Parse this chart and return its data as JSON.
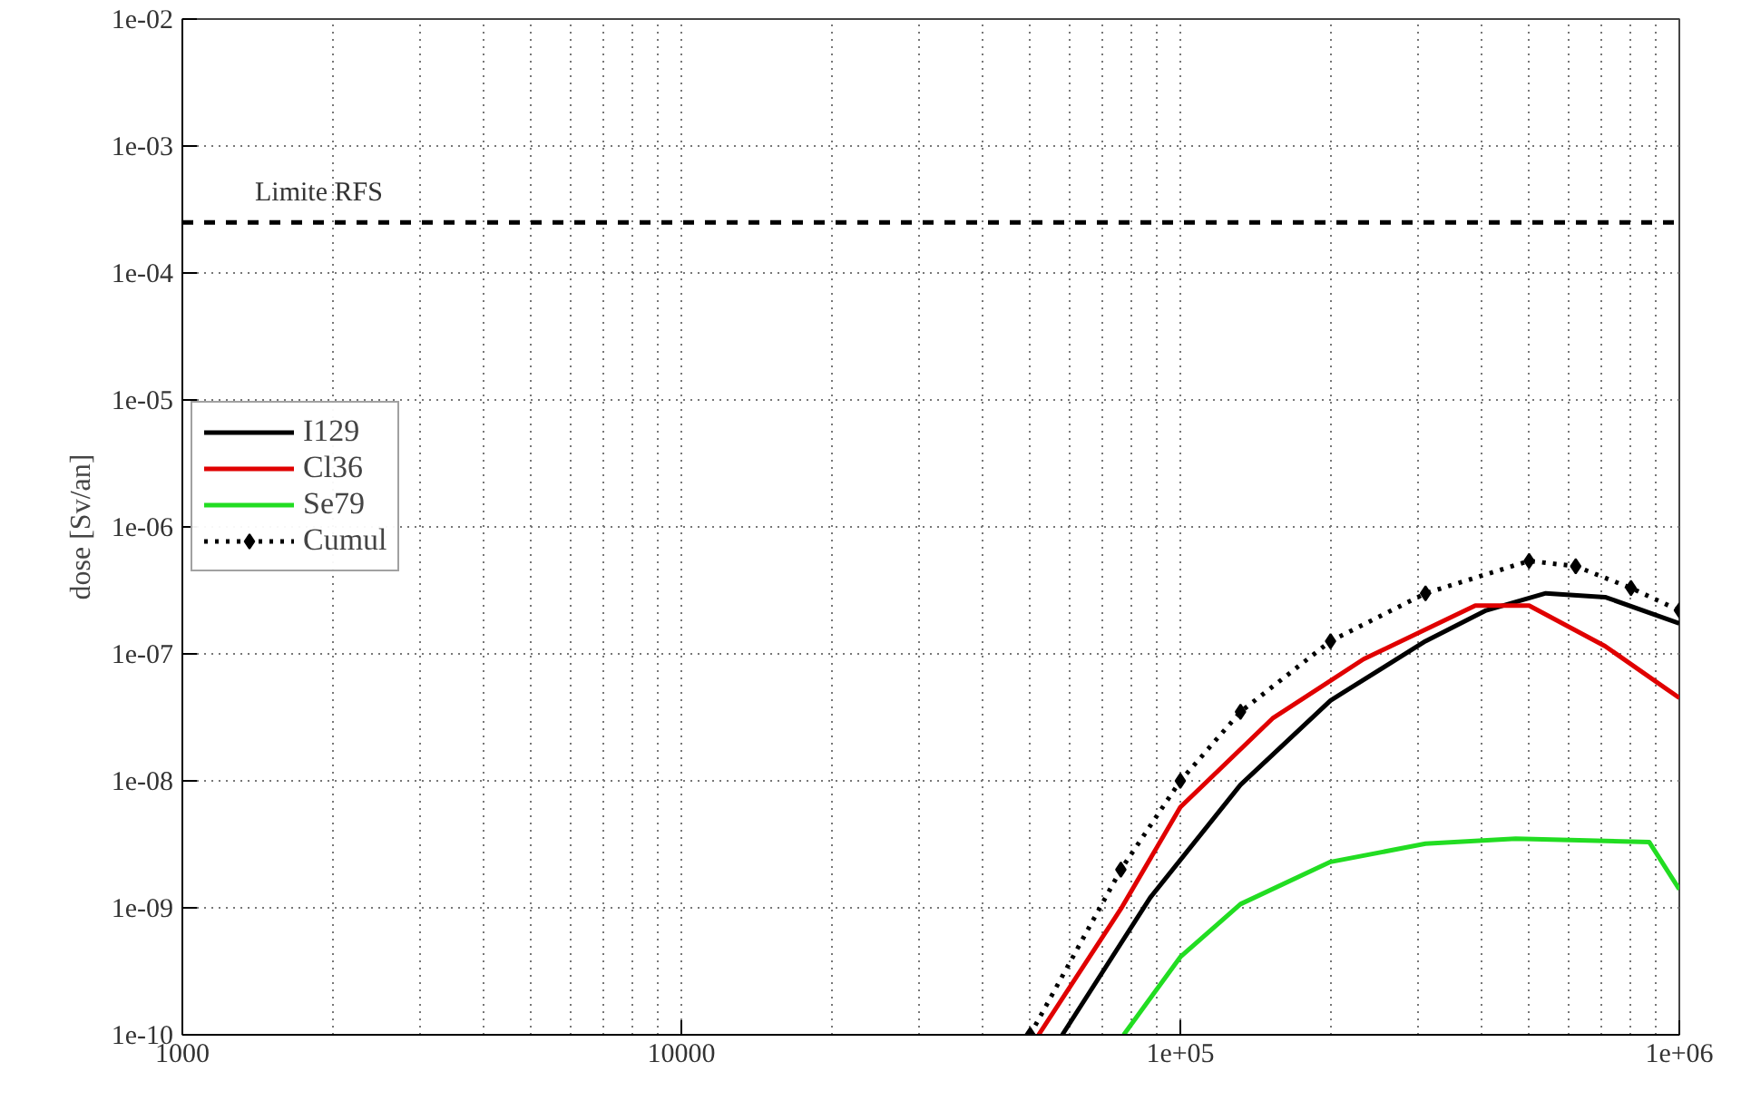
{
  "chart_data": {
    "type": "line",
    "ylabel": "dose [Sv/an]",
    "log": "xy",
    "xlim": [
      1000,
      1000000
    ],
    "ylim": [
      1e-10,
      0.01
    ],
    "xticks": [
      1000,
      10000,
      {
        "value": 100000,
        "label": "1e+05"
      },
      {
        "value": 1000000,
        "label": "1e+06"
      }
    ],
    "yticks": [
      {
        "value": 1e-10,
        "label": "1e-10"
      },
      {
        "value": 1e-09,
        "label": "1e-09"
      },
      {
        "value": 1e-08,
        "label": "1e-08"
      },
      {
        "value": 1e-07,
        "label": "1e-07"
      },
      {
        "value": 1e-06,
        "label": "1e-06"
      },
      {
        "value": 1e-05,
        "label": "1e-05"
      },
      {
        "value": 0.0001,
        "label": "1e-04"
      },
      {
        "value": 0.001,
        "label": "1e-03"
      },
      {
        "value": 0.01,
        "label": "1e-02"
      }
    ],
    "grid": true,
    "legend": "top left",
    "line_style": "solid",
    "marker": "none",
    "ref_lines": [
      {
        "axis": "y",
        "value": 0.00025,
        "label": "Limite RFS",
        "color": "#000000",
        "line_style": "dashed"
      }
    ],
    "series": [
      {
        "name": "I129",
        "color": "#000000",
        "x": [
          58000,
          87000,
          132000,
          200000,
          310000,
          410000,
          540000,
          710000,
          1000000
        ],
        "values": [
          1e-10,
          1.2e-09,
          9.3e-09,
          4.3e-08,
          1.26e-07,
          2.2e-07,
          3e-07,
          2.8e-07,
          1.74e-07
        ]
      },
      {
        "name": "Cl36",
        "color": "#e00000",
        "x": [
          52000,
          76000,
          100000,
          153000,
          233000,
          390000,
          500000,
          710000,
          1000000
        ],
        "values": [
          1e-10,
          9.8e-10,
          6.2e-09,
          3.1e-08,
          9.1e-08,
          2.4e-07,
          2.4e-07,
          1.15e-07,
          4.5e-08
        ]
      },
      {
        "name": "Se79",
        "color": "#22dd22",
        "x": [
          77000,
          100000,
          132000,
          200000,
          310000,
          470000,
          870000,
          1000000
        ],
        "values": [
          1e-10,
          4.1e-10,
          1.07e-09,
          2.3e-09,
          3.2e-09,
          3.5e-09,
          3.3e-09,
          1.4e-09
        ]
      },
      {
        "name": "Cumul",
        "color": "#000000",
        "line_style": "dotted",
        "marker": "diamond",
        "x": [
          50000,
          76000,
          100000,
          132000,
          200000,
          310000,
          500000,
          620000,
          800000,
          1000000
        ],
        "values": [
          1e-10,
          2e-09,
          1e-08,
          3.5e-08,
          1.26e-07,
          3e-07,
          5.4e-07,
          4.9e-07,
          3.3e-07,
          2.2e-07
        ]
      }
    ]
  }
}
